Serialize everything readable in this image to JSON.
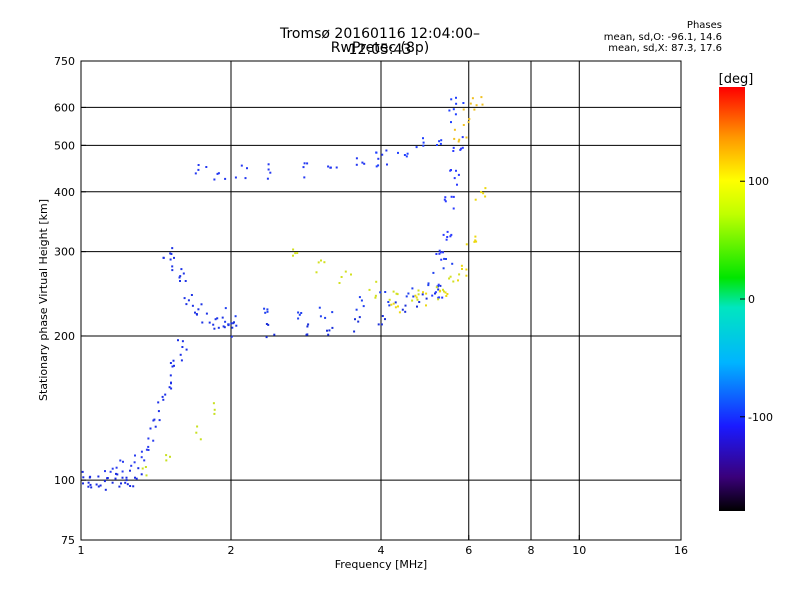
{
  "header": {
    "title_line1": "Tromsø 20160116 12:04:00–12:05:43",
    "title_line2": "RwPretec (8p)",
    "phases_label": "Phases",
    "phases_o": "mean, sd,O: -96.1, 14.6",
    "phases_x": "mean, sd,X:  87.3, 17.6"
  },
  "colorbar": {
    "unit_label": "[deg]",
    "tick_labels": [
      "100",
      "0",
      "-100"
    ],
    "tick_values": [
      100,
      0,
      -100
    ],
    "range": [
      -180,
      180
    ]
  },
  "chart_data": {
    "type": "scatter",
    "title": "Tromsø 20160116 12:04:00–12:05:43",
    "subtitle": "RwPretec (8p)",
    "xlabel": "Frequency [MHz]",
    "ylabel": "Stationary phase Virtual Height [km]",
    "xscale": "log",
    "yscale": "log",
    "xlim": [
      1,
      16
    ],
    "ylim": [
      75,
      750
    ],
    "x_ticks": [
      1,
      2,
      4,
      6,
      8,
      10,
      16
    ],
    "x_tick_labels": [
      "1",
      "2",
      "4",
      "6",
      "8",
      "10",
      "16"
    ],
    "x_grid": [
      2,
      4,
      6,
      8,
      10
    ],
    "y_ticks": [
      75,
      100,
      200,
      300,
      400,
      500,
      600,
      750
    ],
    "y_tick_labels": [
      "75",
      "100",
      "200",
      "300",
      "400",
      "500",
      "600",
      "750"
    ],
    "y_grid": [
      100,
      200,
      300,
      400,
      500,
      600
    ],
    "grid": true,
    "color_by": "phase [deg]",
    "series": [
      {
        "traces": [
          {
            "x": [
              1.0,
              1.03,
              1.06,
              1.1,
              1.14,
              1.18,
              1.22,
              1.26,
              1.3
            ],
            "y": [
              100,
              99,
              99,
              98,
              101,
              100,
              102,
              101,
              103
            ],
            "color": "#1a2be0",
            "n": 4
          },
          {
            "x": [
              1.15,
              1.2,
              1.25,
              1.3,
              1.35,
              1.4
            ],
            "y": [
              104,
              106,
              108,
              110,
              114,
              118
            ],
            "color": "#2a3cf0",
            "n": 3
          },
          {
            "x": [
              1.42,
              1.45,
              1.5,
              1.55,
              1.6
            ],
            "y": [
              130,
              145,
              160,
              175,
              190
            ],
            "color": "#1c30e8",
            "n": 5
          },
          {
            "x": [
              1.5,
              1.55,
              1.6,
              1.65,
              1.7,
              1.8,
              1.9,
              2.0
            ],
            "y": [
              300,
              280,
              260,
              240,
              225,
              215,
              210,
              206
            ],
            "color": "#1e34e6",
            "n": 5
          },
          {
            "x": [
              2.0,
              2.4,
              2.8,
              3.2,
              3.6,
              4.0,
              4.4,
              4.8,
              5.2
            ],
            "y": [
              206,
              205,
              206,
              208,
              212,
              218,
              226,
              236,
              250
            ],
            "color": "#1a2fd8",
            "n": 4
          },
          {
            "x": [
              2.0,
              2.3,
              2.7,
              3.1,
              3.6,
              4.1,
              4.6,
              5.1,
              5.5
            ],
            "y": [
              220,
              222,
              224,
              226,
              232,
              240,
              250,
              262,
              285
            ],
            "color": "#2040f0",
            "n": 4
          },
          {
            "x": [
              1.75,
              1.9,
              2.1,
              2.4,
              2.8,
              3.2,
              3.6,
              4.0
            ],
            "y": [
              445,
              440,
              438,
              440,
              445,
              450,
              458,
              470
            ],
            "color": "#2438f2",
            "n": 4
          },
          {
            "x": [
              4.0,
              4.4,
              4.8,
              5.2,
              5.5,
              5.7
            ],
            "y": [
              470,
              485,
              500,
              520,
              580,
              630
            ],
            "color": "#2040ff",
            "n": 4
          },
          {
            "x": [
              5.2,
              5.3,
              5.4,
              5.5,
              5.6,
              5.7
            ],
            "y": [
              250,
              290,
              330,
              380,
              430,
              500
            ],
            "color": "#2a3aff",
            "n": 6
          },
          {
            "x": [
              2.7,
              3.0,
              3.4,
              3.8,
              4.2,
              4.7,
              5.2,
              5.6
            ],
            "y": [
              300,
              280,
              262,
              250,
              242,
              240,
              245,
              260
            ],
            "color": "#d2e020",
            "n": 4
          },
          {
            "x": [
              4.3,
              4.8,
              5.3,
              5.8,
              6.1,
              6.3
            ],
            "y": [
              232,
              240,
              250,
              270,
              320,
              400
            ],
            "color": "#ecd810",
            "n": 5
          },
          {
            "x": [
              5.6,
              5.8,
              6.0,
              6.2,
              6.4
            ],
            "y": [
              500,
              540,
              580,
              610,
              620
            ],
            "color": "#f0c020",
            "n": 3
          },
          {
            "x": [
              1.35,
              1.5,
              1.7,
              1.9
            ],
            "y": [
              105,
              112,
              125,
              140
            ],
            "color": "#c8e020",
            "n": 3
          }
        ]
      }
    ]
  }
}
